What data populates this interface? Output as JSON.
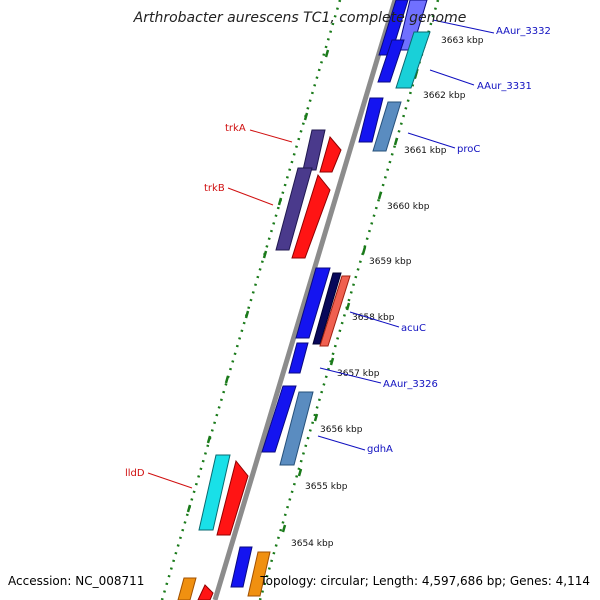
{
  "title": "Arthrobacter aurescens TC1, complete genome",
  "accession": "Accession: NC_008711",
  "summary": "Topology: circular; Length: 4,597,686 bp; Genes: 4,114",
  "colors": {
    "backbone": "#8c8c8c",
    "tick": "#1a7a1a",
    "plus_label": "#1010c0",
    "minus_label": "#d01010"
  },
  "scale_marks": [
    {
      "label": "3663 kbp"
    },
    {
      "label": "3662 kbp"
    },
    {
      "label": "3661 kbp"
    },
    {
      "label": "3660 kbp"
    },
    {
      "label": "3659 kbp"
    },
    {
      "label": "3658 kbp"
    },
    {
      "label": "3657 kbp"
    },
    {
      "label": "3656 kbp"
    },
    {
      "label": "3655 kbp"
    },
    {
      "label": "3654 kbp"
    }
  ],
  "gene_labels": [
    {
      "name": "AAur_3332",
      "strand": "plus"
    },
    {
      "name": "AAur_3331",
      "strand": "plus"
    },
    {
      "name": "proC",
      "strand": "plus"
    },
    {
      "name": "acuC",
      "strand": "plus"
    },
    {
      "name": "AAur_3326",
      "strand": "plus"
    },
    {
      "name": "gdhA",
      "strand": "plus"
    },
    {
      "name": "trkA",
      "strand": "minus"
    },
    {
      "name": "trkB",
      "strand": "minus"
    },
    {
      "name": "lldD",
      "strand": "minus"
    }
  ]
}
